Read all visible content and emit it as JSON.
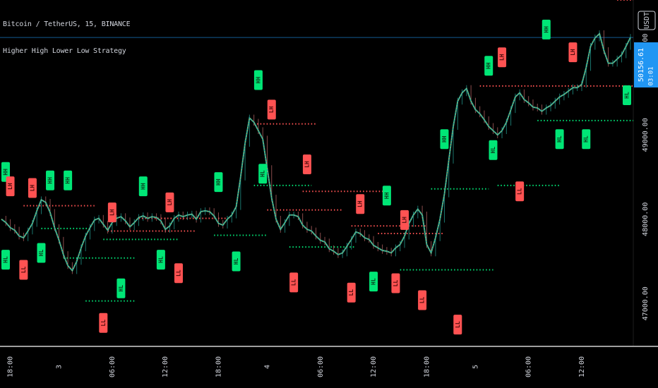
{
  "header": {
    "title": "Bitcoin / TetherUS, 15, BINANCE",
    "strategy": "Higher High Lower Low Strategy"
  },
  "currency_button": "USDT",
  "price_label": {
    "value": "50156.61",
    "countdown": "03:01"
  },
  "colors": {
    "background": "#000000",
    "candle_up": "#26a69a",
    "candle_down": "#c46d6d",
    "ma_line": "#d4b14a",
    "hh_hl": "#00e676",
    "lh_ll": "#ff5252",
    "price_line": "#2196f3"
  },
  "chart_data": {
    "type": "line",
    "title": "",
    "price_axis": {
      "ticks": [
        "50000.00",
        "49000.00",
        "48000.00",
        "47000.00"
      ],
      "tick_values": [
        50000,
        49000,
        48000,
        47000
      ],
      "range": [
        46500,
        50600
      ]
    },
    "time_axis": {
      "labels": [
        "18:00",
        "3",
        "06:00",
        "12:00",
        "18:00",
        "4",
        "06:00",
        "12:00",
        "18:00",
        "5",
        "06:00",
        "12:00"
      ],
      "label_bar_index": [
        2,
        13,
        25,
        37,
        49,
        60,
        72,
        84,
        96,
        107,
        119,
        131
      ]
    },
    "bars_per_hour": 1,
    "series": [
      {
        "values": [
          48000,
          47960,
          47900,
          47870,
          47800,
          47780,
          47860,
          47950,
          48100,
          48230,
          48200,
          48080,
          47900,
          47750,
          47580,
          47450,
          47390,
          47500,
          47660,
          47800,
          47900,
          47990,
          48010,
          47940,
          47870,
          47960,
          48010,
          48030,
          47980,
          47910,
          47960,
          48020,
          48040,
          48010,
          48030,
          48020,
          47980,
          47880,
          47920,
          48010,
          48050,
          48030,
          48050,
          48060,
          48000,
          48090,
          48100,
          48090,
          48040,
          47950,
          47930,
          48000,
          48050,
          48150,
          48500,
          48900,
          49200,
          49150,
          49050,
          48950,
          48600,
          48250,
          48000,
          47880,
          47960,
          48050,
          48050,
          48030,
          47930,
          47880,
          47860,
          47800,
          47750,
          47730,
          47650,
          47620,
          47580,
          47600,
          47680,
          47760,
          47850,
          47830,
          47780,
          47760,
          47690,
          47660,
          47630,
          47620,
          47600,
          47660,
          47700,
          47800,
          47950,
          48050,
          48120,
          48050,
          47700,
          47600,
          47780,
          48000,
          48300,
          48700,
          49100,
          49400,
          49500,
          49550,
          49400,
          49300,
          49250,
          49180,
          49100,
          49050,
          49000,
          49050,
          49150,
          49300,
          49450,
          49500,
          49420,
          49380,
          49330,
          49320,
          49280,
          49320,
          49350,
          49400,
          49450,
          49480,
          49520,
          49560,
          49560,
          49600,
          49800,
          50050,
          50150,
          50200,
          50000,
          49850,
          49850,
          49900,
          49950,
          50050,
          50156
        ]
      }
    ],
    "levels": [
      {
        "type": "LH",
        "value": 48160,
        "start": 5,
        "end": 21
      },
      {
        "type": "HL",
        "value": 47890,
        "start": 9,
        "end": 20
      },
      {
        "type": "HL",
        "value": 47540,
        "start": 14,
        "end": 30
      },
      {
        "type": "HL",
        "value": 47030,
        "start": 19,
        "end": 30
      },
      {
        "type": "LH",
        "value": 47860,
        "start": 24,
        "end": 44
      },
      {
        "type": "HL",
        "value": 47760,
        "start": 23,
        "end": 40
      },
      {
        "type": "LH",
        "value": 48010,
        "start": 31,
        "end": 51
      },
      {
        "type": "HL",
        "value": 47810,
        "start": 48,
        "end": 60
      },
      {
        "type": "LH",
        "value": 49130,
        "start": 57,
        "end": 71
      },
      {
        "type": "HL",
        "value": 48400,
        "start": 57,
        "end": 70
      },
      {
        "type": "LH",
        "value": 48110,
        "start": 60,
        "end": 77
      },
      {
        "type": "HL",
        "value": 47670,
        "start": 65,
        "end": 80
      },
      {
        "type": "LH",
        "value": 48330,
        "start": 68,
        "end": 88
      },
      {
        "type": "LH",
        "value": 47920,
        "start": 79,
        "end": 96
      },
      {
        "type": "LH",
        "value": 47830,
        "start": 85,
        "end": 100
      },
      {
        "type": "HL",
        "value": 47400,
        "start": 90,
        "end": 111
      },
      {
        "type": "HL",
        "value": 48360,
        "start": 97,
        "end": 110
      },
      {
        "type": "LH",
        "value": 49580,
        "start": 108,
        "end": 120
      },
      {
        "type": "HL",
        "value": 48400,
        "start": 112,
        "end": 126
      },
      {
        "type": "LH",
        "value": 49580,
        "start": 120,
        "end": 143
      },
      {
        "type": "HL",
        "value": 49170,
        "start": 121,
        "end": 147
      },
      {
        "type": "LH",
        "value": 50600,
        "start": 139,
        "end": 149
      },
      {
        "type": "HL",
        "value": 49820,
        "start": 144,
        "end": 150
      }
    ],
    "markers": [
      {
        "label": "HH",
        "type": "high",
        "bar": 0,
        "value": 48560
      },
      {
        "label": "LH",
        "type": "low",
        "bar": 2,
        "value": 48390
      },
      {
        "label": "LH",
        "type": "low",
        "bar": 7,
        "value": 48370
      },
      {
        "label": "HH",
        "type": "high",
        "bar": 11,
        "value": 48460
      },
      {
        "label": "HH",
        "type": "high",
        "bar": 15,
        "value": 48460
      },
      {
        "label": "HL",
        "type": "high",
        "bar": 0,
        "value": 47520
      },
      {
        "label": "LL",
        "type": "low",
        "bar": 5,
        "value": 47400
      },
      {
        "label": "HL",
        "type": "high",
        "bar": 9,
        "value": 47600
      },
      {
        "label": "LH",
        "type": "low",
        "bar": 25,
        "value": 48080
      },
      {
        "label": "HH",
        "type": "high",
        "bar": 32,
        "value": 48390
      },
      {
        "label": "LH",
        "type": "low",
        "bar": 38,
        "value": 48200
      },
      {
        "label": "HL",
        "type": "high",
        "bar": 27,
        "value": 47180
      },
      {
        "label": "LL",
        "type": "low",
        "bar": 23,
        "value": 46770
      },
      {
        "label": "HL",
        "type": "high",
        "bar": 36,
        "value": 47520
      },
      {
        "label": "LL",
        "type": "low",
        "bar": 40,
        "value": 47360
      },
      {
        "label": "HH",
        "type": "high",
        "bar": 49,
        "value": 48440
      },
      {
        "label": "HL",
        "type": "high",
        "bar": 53,
        "value": 47500
      },
      {
        "label": "HH",
        "type": "high",
        "bar": 58,
        "value": 49650
      },
      {
        "label": "LH",
        "type": "low",
        "bar": 61,
        "value": 49300
      },
      {
        "label": "HL",
        "type": "high",
        "bar": 59,
        "value": 48540
      },
      {
        "label": "LH",
        "type": "low",
        "bar": 69,
        "value": 48650
      },
      {
        "label": "LL",
        "type": "low",
        "bar": 66,
        "value": 47250
      },
      {
        "label": "LH",
        "type": "low",
        "bar": 81,
        "value": 48180
      },
      {
        "label": "HH",
        "type": "high",
        "bar": 87,
        "value": 48280
      },
      {
        "label": "LH",
        "type": "low",
        "bar": 91,
        "value": 47990
      },
      {
        "label": "LL",
        "type": "low",
        "bar": 79,
        "value": 47130
      },
      {
        "label": "HL",
        "type": "high",
        "bar": 84,
        "value": 47260
      },
      {
        "label": "LL",
        "type": "low",
        "bar": 89,
        "value": 47240
      },
      {
        "label": "LL",
        "type": "low",
        "bar": 95,
        "value": 47040
      },
      {
        "label": "HH",
        "type": "high",
        "bar": 100,
        "value": 48950
      },
      {
        "label": "HH",
        "type": "high",
        "bar": 110,
        "value": 49820
      },
      {
        "label": "LH",
        "type": "low",
        "bar": 113,
        "value": 49920
      },
      {
        "label": "HL",
        "type": "high",
        "bar": 111,
        "value": 48820
      },
      {
        "label": "LL",
        "type": "low",
        "bar": 117,
        "value": 48330
      },
      {
        "label": "LL",
        "type": "low",
        "bar": 103,
        "value": 46750
      },
      {
        "label": "HH",
        "type": "high",
        "bar": 123,
        "value": 50250
      },
      {
        "label": "LH",
        "type": "low",
        "bar": 129,
        "value": 49980
      },
      {
        "label": "HL",
        "type": "high",
        "bar": 126,
        "value": 48950
      },
      {
        "label": "HL",
        "type": "high",
        "bar": 132,
        "value": 48950
      },
      {
        "label": "HH",
        "type": "high",
        "bar": 144,
        "value": 50780
      },
      {
        "label": "HL",
        "type": "high",
        "bar": 147,
        "value": 49470
      }
    ]
  }
}
